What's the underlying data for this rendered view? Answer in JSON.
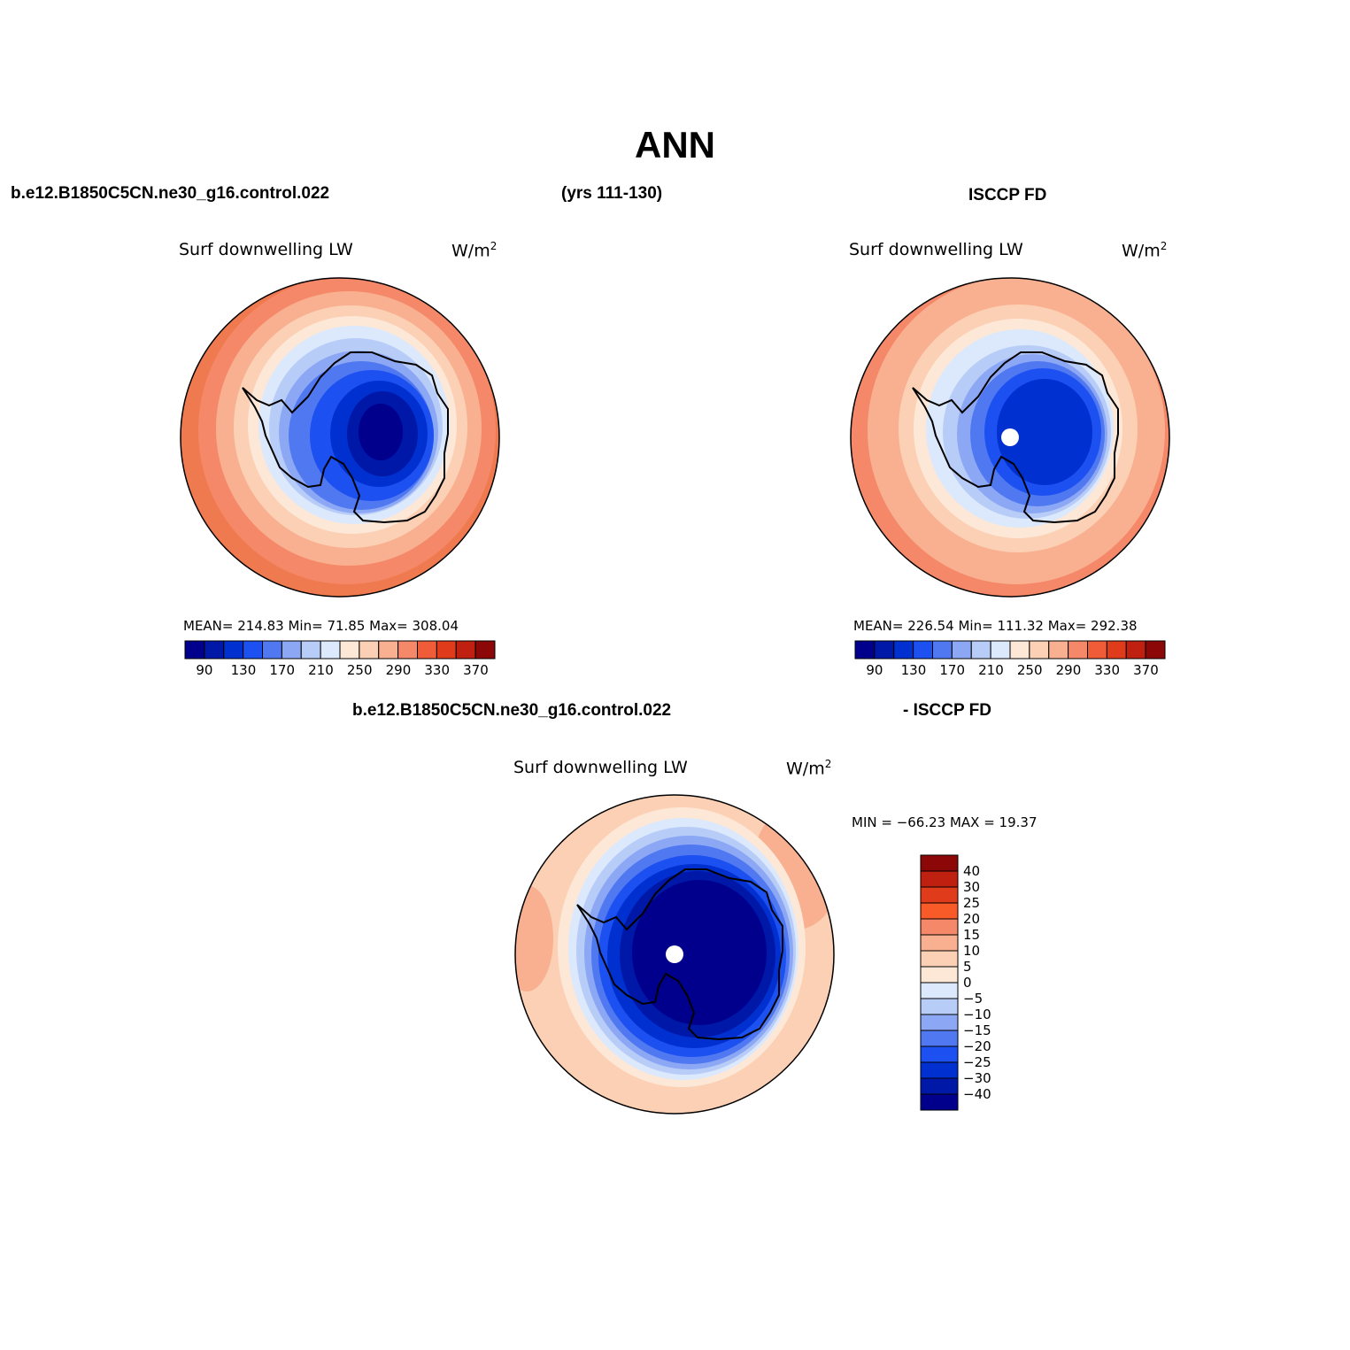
{
  "title": "ANN",
  "headers": {
    "left_case": "b.e12.B1850C5CN.ne30_g16.control.022",
    "years": "(yrs 111-130)",
    "right_case": "ISCCP FD",
    "diff_case": "b.e12.B1850C5CN.ne30_g16.control.022",
    "diff_ref": "- ISCCP FD"
  },
  "panels": {
    "model": {
      "variable": "Surf downwelling LW",
      "units": "W/m",
      "units_sup": "2",
      "stats": "MEAN= 214.83   Min=   71.85   Max= 308.04"
    },
    "obs": {
      "variable": "Surf downwelling LW",
      "units": "W/m",
      "units_sup": "2",
      "stats": "MEAN= 226.54   Min= 111.32   Max= 292.38"
    },
    "diff": {
      "variable": "Surf downwelling LW",
      "units": "W/m",
      "units_sup": "2",
      "stats": "MIN = −66.23 MAX =   19.37"
    }
  },
  "colorbar_abs": {
    "colors": [
      "#00008c",
      "#0018a8",
      "#0030d0",
      "#1c50f0",
      "#5078f0",
      "#8ca8f5",
      "#b8ccf8",
      "#dce8fb",
      "#fde8d8",
      "#fcd0b4",
      "#f8b090",
      "#f48868",
      "#f05c38",
      "#e03c1c",
      "#c02010",
      "#8c0808"
    ],
    "labels": [
      "90",
      "130",
      "170",
      "210",
      "250",
      "290",
      "330",
      "370"
    ]
  },
  "colorbar_diff": {
    "colors": [
      "#8c0808",
      "#c02010",
      "#e03c1c",
      "#f85a28",
      "#f48868",
      "#f8b090",
      "#fcd0b4",
      "#fde8d8",
      "#dce8fb",
      "#b8ccf8",
      "#8ca8f5",
      "#5078f0",
      "#1c50f0",
      "#0030d0",
      "#0018a8",
      "#00008c"
    ],
    "labels": [
      "40",
      "30",
      "25",
      "20",
      "15",
      "10",
      "5",
      "0",
      "−5",
      "−10",
      "−15",
      "−20",
      "−25",
      "−30",
      "−40"
    ]
  }
}
